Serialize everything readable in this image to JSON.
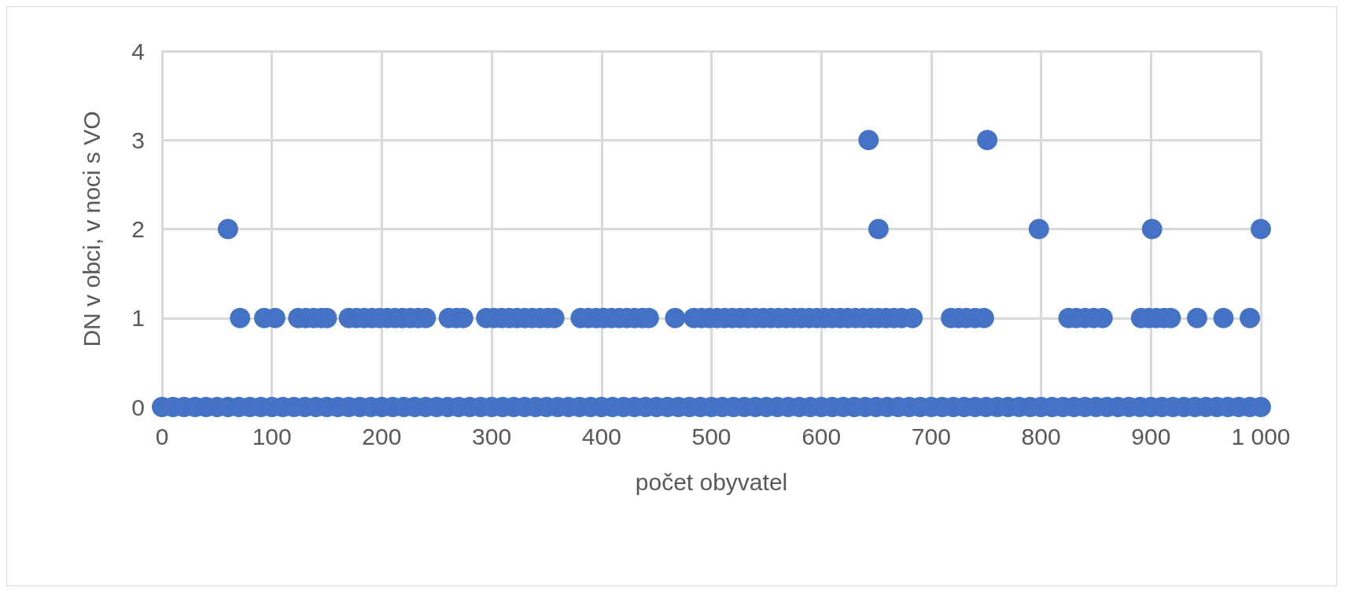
{
  "chart_data": {
    "type": "scatter",
    "xlabel": "počet obyvatel",
    "ylabel": "DN v obci, v noci s VO",
    "x": [
      0,
      10,
      20,
      30,
      40,
      50,
      60,
      70,
      80,
      90,
      100,
      110,
      120,
      130,
      140,
      150,
      160,
      170,
      180,
      190,
      200,
      210,
      220,
      230,
      240,
      250,
      260,
      270,
      280,
      290,
      300,
      310,
      320,
      330,
      340,
      350,
      360,
      370,
      380,
      390,
      400,
      410,
      420,
      430,
      440,
      450,
      460,
      470,
      480,
      490,
      500,
      510,
      520,
      530,
      540,
      550,
      560,
      570,
      580,
      590,
      600,
      610,
      620,
      630,
      640,
      650,
      660,
      670,
      680,
      690,
      700,
      710,
      720,
      730,
      740,
      750,
      760,
      770,
      780,
      790,
      800,
      810,
      820,
      830,
      840,
      850,
      860,
      870,
      880,
      890,
      900,
      910,
      920,
      930,
      940,
      950,
      960,
      970,
      980,
      990,
      1000,
      71,
      93,
      103,
      124,
      131,
      138,
      145,
      150,
      170,
      177,
      184,
      191,
      198,
      205,
      212,
      219,
      226,
      233,
      240,
      261,
      268,
      274,
      295,
      302,
      309,
      316,
      323,
      330,
      337,
      344,
      351,
      357,
      381,
      388,
      395,
      402,
      409,
      416,
      423,
      430,
      437,
      443,
      467,
      484,
      491,
      498,
      505,
      512,
      519,
      526,
      533,
      540,
      547,
      554,
      561,
      568,
      575,
      582,
      589,
      596,
      603,
      610,
      617,
      624,
      631,
      638,
      645,
      652,
      659,
      666,
      673,
      683,
      718,
      725,
      732,
      740,
      748,
      825,
      832,
      840,
      848,
      856,
      891,
      898,
      905,
      912,
      918,
      942,
      966,
      990,
      60,
      643,
      652,
      751,
      798,
      901,
      1000
    ],
    "values": [
      0,
      0,
      0,
      0,
      0,
      0,
      0,
      0,
      0,
      0,
      0,
      0,
      0,
      0,
      0,
      0,
      0,
      0,
      0,
      0,
      0,
      0,
      0,
      0,
      0,
      0,
      0,
      0,
      0,
      0,
      0,
      0,
      0,
      0,
      0,
      0,
      0,
      0,
      0,
      0,
      0,
      0,
      0,
      0,
      0,
      0,
      0,
      0,
      0,
      0,
      0,
      0,
      0,
      0,
      0,
      0,
      0,
      0,
      0,
      0,
      0,
      0,
      0,
      0,
      0,
      0,
      0,
      0,
      0,
      0,
      0,
      0,
      0,
      0,
      0,
      0,
      0,
      0,
      0,
      0,
      0,
      0,
      0,
      0,
      0,
      0,
      0,
      0,
      0,
      0,
      0,
      0,
      0,
      0,
      0,
      0,
      0,
      0,
      0,
      0,
      0,
      1,
      1,
      1,
      1,
      1,
      1,
      1,
      1,
      1,
      1,
      1,
      1,
      1,
      1,
      1,
      1,
      1,
      1,
      1,
      1,
      1,
      1,
      1,
      1,
      1,
      1,
      1,
      1,
      1,
      1,
      1,
      1,
      1,
      1,
      1,
      1,
      1,
      1,
      1,
      1,
      1,
      1,
      1,
      1,
      1,
      1,
      1,
      1,
      1,
      1,
      1,
      1,
      1,
      1,
      1,
      1,
      1,
      1,
      1,
      1,
      1,
      1,
      1,
      1,
      1,
      1,
      1,
      1,
      1,
      1,
      1,
      1,
      1,
      1,
      1,
      1,
      1,
      1,
      1,
      1,
      1,
      1,
      1,
      1,
      1,
      1,
      1,
      1,
      1,
      1,
      2,
      3,
      2,
      3,
      2,
      2,
      2
    ],
    "color": "#4472c4",
    "marker": "circle",
    "xlim": [
      0,
      1000
    ],
    "xticks": [
      0,
      100,
      200,
      300,
      400,
      500,
      600,
      700,
      800,
      900,
      {
        "value": 1000,
        "label": "1 000"
      }
    ],
    "ylim": [
      0,
      4
    ],
    "yticks": [
      0,
      1,
      2,
      3,
      4
    ],
    "grid": true
  }
}
